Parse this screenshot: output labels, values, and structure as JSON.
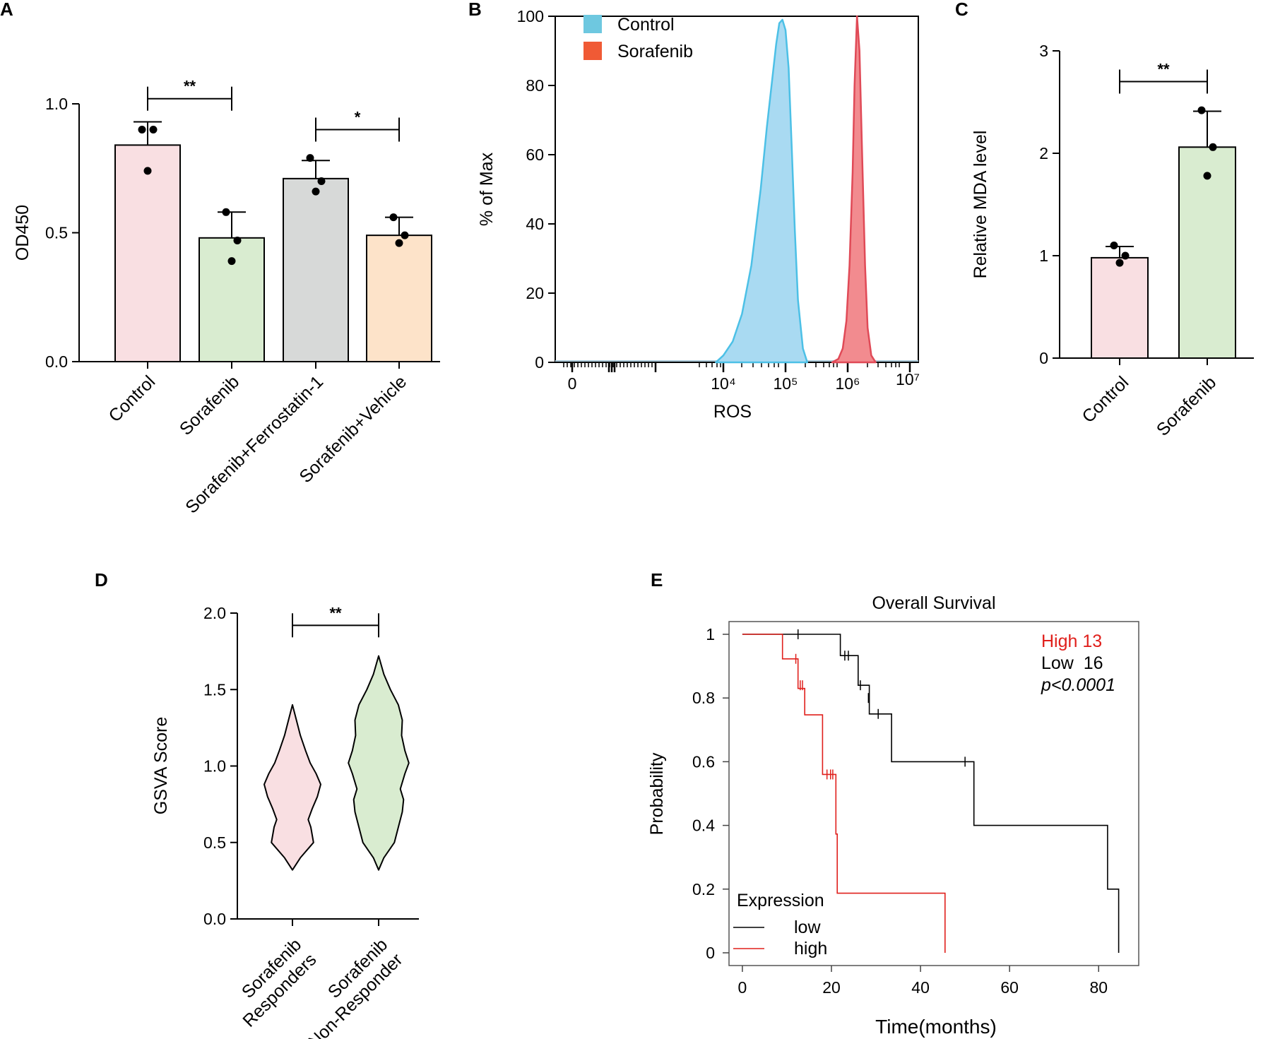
{
  "figure": {
    "panels": [
      "A",
      "B",
      "C",
      "D",
      "E"
    ]
  },
  "chart_data": [
    {
      "id": "A",
      "type": "bar",
      "ylabel": "OD450",
      "xlabel": "",
      "ylim": [
        0,
        1.0
      ],
      "yticks": [
        0.0,
        0.5,
        1.0
      ],
      "ytick_labels": [
        "0.0",
        "0.5",
        "1.0"
      ],
      "categories": [
        "Control",
        "Sorafenib",
        "Sorafenib+Ferrostatin-1",
        "Sorafenib+Vehicle"
      ],
      "values": [
        0.84,
        0.48,
        0.71,
        0.49
      ],
      "errors": [
        0.09,
        0.1,
        0.07,
        0.07
      ],
      "points": [
        [
          0.9,
          0.9,
          0.74
        ],
        [
          0.58,
          0.47,
          0.39
        ],
        [
          0.79,
          0.7,
          0.66
        ],
        [
          0.56,
          0.49,
          0.46
        ]
      ],
      "colors": [
        "#f9dfe2",
        "#d9ecd0",
        "#d7d9d8",
        "#fde3c9"
      ],
      "significance": [
        {
          "from": 0,
          "to": 1,
          "label": "**",
          "y": 1.02
        },
        {
          "from": 2,
          "to": 3,
          "label": "*",
          "y": 0.9
        }
      ]
    },
    {
      "id": "B",
      "type": "area",
      "xlabel": "ROS",
      "ylabel": "% of Max",
      "ylim": [
        0,
        100
      ],
      "yticks": [
        0,
        20,
        40,
        60,
        80,
        100
      ],
      "ytick_labels": [
        "0",
        "20",
        "40",
        "60",
        "80",
        "100"
      ],
      "xtick_labels": {
        "zero": "0",
        "e4": "10⁴",
        "e5": "10⁵",
        "e6": "10⁶",
        "e7": "10⁷"
      },
      "series": [
        {
          "name": "Control",
          "color": "#6ec8e0",
          "x_log10": [
            3.88,
            4.0,
            4.15,
            4.3,
            4.45,
            4.6,
            4.7,
            4.8,
            4.85,
            4.9,
            4.95,
            5.0,
            5.05,
            5.1,
            5.15,
            5.2,
            5.28,
            5.35
          ],
          "y": [
            0,
            2,
            6,
            14,
            28,
            50,
            68,
            84,
            92,
            98,
            99,
            96,
            85,
            62,
            38,
            18,
            4,
            0
          ]
        },
        {
          "name": "Sorafenib",
          "color": "#f05a35",
          "x_log10": [
            5.75,
            5.85,
            5.92,
            5.98,
            6.03,
            6.08,
            6.11,
            6.15,
            6.19,
            6.23,
            6.28,
            6.32,
            6.38,
            6.45
          ],
          "y": [
            0,
            1,
            4,
            12,
            28,
            55,
            80,
            100,
            90,
            62,
            28,
            10,
            2,
            0
          ]
        }
      ]
    },
    {
      "id": "C",
      "type": "bar",
      "ylabel": "Relative MDA level",
      "xlabel": "",
      "ylim": [
        0,
        3
      ],
      "yticks": [
        0,
        1,
        2,
        3
      ],
      "ytick_labels": [
        "0",
        "1",
        "2",
        "3"
      ],
      "categories": [
        "Control",
        "Sorafenib"
      ],
      "values": [
        0.98,
        2.06
      ],
      "errors": [
        0.11,
        0.35
      ],
      "points": [
        [
          1.1,
          1.0,
          0.93
        ],
        [
          2.42,
          2.06,
          1.78
        ]
      ],
      "colors": [
        "#f9dfe2",
        "#d9ecd0"
      ],
      "significance": [
        {
          "from": 0,
          "to": 1,
          "label": "**",
          "y": 2.7
        }
      ]
    },
    {
      "id": "D",
      "type": "violin",
      "ylabel": "GSVA Score",
      "xlabel": "",
      "ylim": [
        0,
        2.0
      ],
      "yticks": [
        0.0,
        0.5,
        1.0,
        1.5,
        2.0
      ],
      "ytick_labels": [
        "0.0",
        "0.5",
        "1.0",
        "1.5",
        "2.0"
      ],
      "categories": [
        {
          "line1": "Sorafenib",
          "line2": "Responders"
        },
        {
          "line1": "Sorafenib",
          "line2": "Non-Responder"
        }
      ],
      "colors": [
        "#f9dfe2",
        "#d9ecd0"
      ],
      "violins": [
        {
          "y": [
            0.32,
            0.4,
            0.5,
            0.6,
            0.65,
            0.72,
            0.8,
            0.88,
            0.95,
            1.02,
            1.1,
            1.2,
            1.3,
            1.4
          ],
          "halfwidth": [
            0.0,
            0.12,
            0.32,
            0.28,
            0.24,
            0.3,
            0.38,
            0.43,
            0.36,
            0.27,
            0.2,
            0.12,
            0.06,
            0.0
          ]
        },
        {
          "y": [
            0.32,
            0.4,
            0.5,
            0.6,
            0.7,
            0.78,
            0.85,
            0.95,
            1.02,
            1.1,
            1.2,
            1.3,
            1.4,
            1.5,
            1.6,
            1.72
          ],
          "halfwidth": [
            0.0,
            0.08,
            0.24,
            0.3,
            0.36,
            0.38,
            0.33,
            0.4,
            0.46,
            0.4,
            0.35,
            0.36,
            0.3,
            0.18,
            0.08,
            0.0
          ]
        }
      ],
      "significance": [
        {
          "from": 0,
          "to": 1,
          "label": "**",
          "y": 1.92
        }
      ]
    },
    {
      "id": "E",
      "type": "line",
      "title": "Overall Survival",
      "xlabel": "Time(months)",
      "ylabel": "Probability",
      "xlim": [
        -3,
        89
      ],
      "ylim": [
        -0.04,
        1.04
      ],
      "xticks": [
        0,
        20,
        40,
        60,
        80
      ],
      "xtick_labels": [
        "0",
        "20",
        "40",
        "60",
        "80"
      ],
      "yticks": [
        0,
        0.2,
        0.4,
        0.6,
        0.8,
        1
      ],
      "ytick_labels": [
        "0",
        "0.2",
        "0.4",
        "0.6",
        "0.8",
        "1"
      ],
      "legend_title": "Expression",
      "legend_position": "bottom-left",
      "annotations": [
        {
          "text": "High 13",
          "color": "#e0201c",
          "style": "normal"
        },
        {
          "text": "Low  16",
          "color": "#000000",
          "style": "normal"
        },
        {
          "text": "p<0.0001",
          "color": "#000000",
          "style": "italic"
        }
      ],
      "series": [
        {
          "name": "low",
          "color": "#000000",
          "steps": [
            [
              0,
              1.0
            ],
            [
              22,
              1.0
            ],
            [
              22,
              0.933
            ],
            [
              26,
              0.933
            ],
            [
              26,
              0.84
            ],
            [
              28.5,
              0.84
            ],
            [
              28.5,
              0.75
            ],
            [
              33.5,
              0.75
            ],
            [
              33.5,
              0.6
            ],
            [
              52,
              0.6
            ],
            [
              52,
              0.4
            ],
            [
              82,
              0.4
            ],
            [
              82,
              0.2
            ],
            [
              84.5,
              0.2
            ],
            [
              84.5,
              0.0
            ]
          ],
          "censored": [
            [
              12.5,
              1.0
            ],
            [
              23,
              0.933
            ],
            [
              23.8,
              0.933
            ],
            [
              26.5,
              0.84
            ],
            [
              28.3,
              0.8
            ],
            [
              30.5,
              0.75
            ],
            [
              50,
              0.6
            ]
          ]
        },
        {
          "name": "high",
          "color": "#e0201c",
          "steps": [
            [
              0,
              1.0
            ],
            [
              9,
              1.0
            ],
            [
              9,
              0.923
            ],
            [
              12.5,
              0.923
            ],
            [
              12.5,
              0.83
            ],
            [
              14,
              0.83
            ],
            [
              14,
              0.747
            ],
            [
              18,
              0.747
            ],
            [
              18,
              0.56
            ],
            [
              21,
              0.56
            ],
            [
              21,
              0.373
            ],
            [
              21.3,
              0.373
            ],
            [
              21.3,
              0.187
            ],
            [
              45.5,
              0.187
            ],
            [
              45.5,
              0.0
            ]
          ],
          "censored": [
            [
              12,
              0.923
            ],
            [
              13,
              0.84
            ],
            [
              13.5,
              0.84
            ],
            [
              19,
              0.56
            ],
            [
              19.8,
              0.56
            ],
            [
              20.3,
              0.56
            ]
          ]
        }
      ]
    }
  ]
}
